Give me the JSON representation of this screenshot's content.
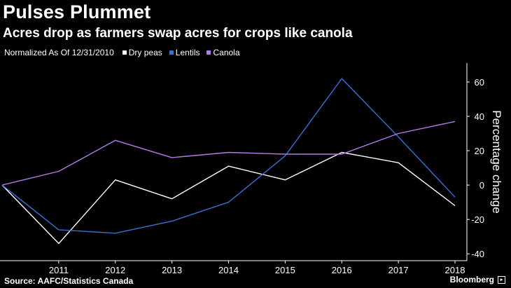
{
  "header": {
    "title": "Pulses Plummet",
    "subtitle": "Acres drop as farmers swap acres for crops like canola"
  },
  "legend": {
    "note": "Normalized As Of 12/31/2010",
    "items": [
      {
        "label": "Dry peas",
        "color": "#ffffff"
      },
      {
        "label": "Lentils",
        "color": "#3b6fd6"
      },
      {
        "label": "Canola",
        "color": "#b27ce6"
      }
    ]
  },
  "footer": {
    "source": "Source: AAFC/Statistics Canada",
    "brand": "Bloomberg",
    "brand_icon": "bloomberg-box-icon"
  },
  "chart_data": {
    "type": "line",
    "x": [
      2010,
      2011,
      2012,
      2013,
      2014,
      2015,
      2016,
      2017,
      2018
    ],
    "xticks": [
      "2011",
      "2012",
      "2013",
      "2014",
      "2015",
      "2016",
      "2017",
      "2018"
    ],
    "ylabel": "Percentage change",
    "ylim": [
      -44,
      71
    ],
    "yticks": [
      -40,
      -20,
      0,
      20,
      40,
      60
    ],
    "ytick_labels": [
      "-40",
      "-20",
      "0",
      "20",
      "40",
      "60"
    ],
    "grid": false,
    "legend_position": "top-left",
    "series": [
      {
        "name": "Dry peas",
        "color": "#ffffff",
        "values": [
          0,
          -34,
          3,
          -8,
          11,
          3,
          19,
          13,
          -12
        ]
      },
      {
        "name": "Lentils",
        "color": "#3b6fd6",
        "values": [
          0,
          -26,
          -28,
          -21,
          -10,
          17,
          62,
          28,
          -7
        ]
      },
      {
        "name": "Canola",
        "color": "#b27ce6",
        "values": [
          0,
          8,
          26,
          16,
          19,
          18,
          18,
          30,
          37
        ]
      }
    ]
  }
}
